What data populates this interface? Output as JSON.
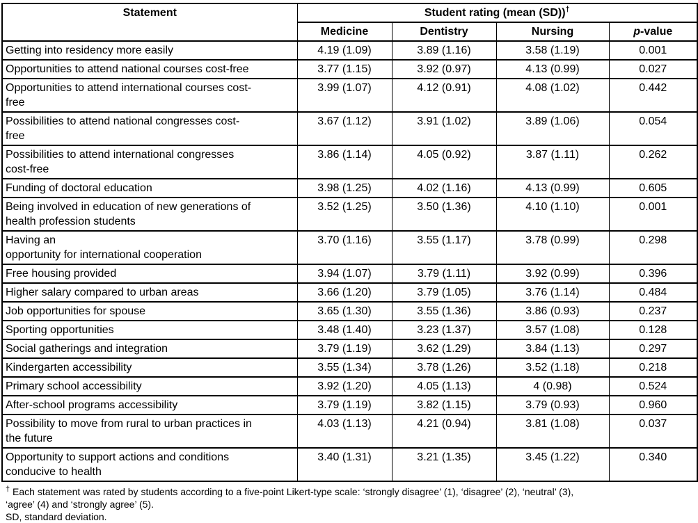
{
  "table": {
    "statement_header": "Statement",
    "group_header": "Student rating (mean (SD))",
    "group_header_sup": "†",
    "sub_headers": [
      "Medicine",
      "Dentistry",
      "Nursing"
    ],
    "p_header_italic": "p",
    "p_header_rest": "-value",
    "rows": [
      {
        "statement": "Getting into residency more easily",
        "medicine": "4.19 (1.09)",
        "dentistry": "3.89 (1.16)",
        "nursing": "3.58 (1.19)",
        "p": "0.001"
      },
      {
        "statement": "Opportunities to attend national courses cost-free",
        "medicine": "3.77 (1.15)",
        "dentistry": "3.92 (0.97)",
        "nursing": "4.13 (0.99)",
        "p": "0.027"
      },
      {
        "statement": "Opportunities to attend international courses cost-\nfree",
        "medicine": "3.99 (1.07)",
        "dentistry": "4.12 (0.91)",
        "nursing": "4.08 (1.02)",
        "p": "0.442"
      },
      {
        "statement": "Possibilities to attend national congresses cost-\nfree",
        "medicine": "3.67 (1.12)",
        "dentistry": "3.91 (1.02)",
        "nursing": "3.89 (1.06)",
        "p": "0.054"
      },
      {
        "statement": "Possibilities to attend international congresses\ncost-free",
        "medicine": "3.86 (1.14)",
        "dentistry": "4.05 (0.92)",
        "nursing": "3.87 (1.11)",
        "p": "0.262"
      },
      {
        "statement": "Funding of doctoral education",
        "medicine": "3.98 (1.25)",
        "dentistry": "4.02 (1.16)",
        "nursing": "4.13 (0.99)",
        "p": "0.605"
      },
      {
        "statement": "Being involved in education of new generations of\nhealth profession students",
        "medicine": "3.52 (1.25)",
        "dentistry": "3.50 (1.36)",
        "nursing": "4.10 (1.10)",
        "p": "0.001"
      },
      {
        "statement": "Having an\nopportunity for international cooperation",
        "medicine": "3.70 (1.16)",
        "dentistry": "3.55 (1.17)",
        "nursing": "3.78 (0.99)",
        "p": "0.298"
      },
      {
        "statement": "Free housing provided",
        "medicine": "3.94 (1.07)",
        "dentistry": "3.79 (1.11)",
        "nursing": "3.92 (0.99)",
        "p": "0.396"
      },
      {
        "statement": "Higher salary compared to urban areas",
        "medicine": "3.66 (1.20)",
        "dentistry": "3.79 (1.05)",
        "nursing": "3.76 (1.14)",
        "p": "0.484"
      },
      {
        "statement": "Job opportunities for spouse",
        "medicine": "3.65 (1.30)",
        "dentistry": "3.55 (1.36)",
        "nursing": "3.86 (0.93)",
        "p": "0.237"
      },
      {
        "statement": "Sporting opportunities",
        "medicine": "3.48 (1.40)",
        "dentistry": "3.23 (1.37)",
        "nursing": "3.57 (1.08)",
        "p": "0.128"
      },
      {
        "statement": "Social gatherings and integration",
        "medicine": "3.79 (1.19)",
        "dentistry": "3.62 (1.29)",
        "nursing": "3.84 (1.13)",
        "p": "0.297"
      },
      {
        "statement": "Kindergarten accessibility",
        "medicine": "3.55 (1.34)",
        "dentistry": "3.78 (1.26)",
        "nursing": "3.52 (1.18)",
        "p": "0.218"
      },
      {
        "statement": "Primary school accessibility",
        "medicine": "3.92 (1.20)",
        "dentistry": "4.05 (1.13)",
        "nursing": "4 (0.98)",
        "p": "0.524"
      },
      {
        "statement": "After-school programs accessibility",
        "medicine": "3.79 (1.19)",
        "dentistry": "3.82 (1.15)",
        "nursing": "3.79 (0.93)",
        "p": "0.960"
      },
      {
        "statement": "Possibility to move from rural to urban practices in\nthe future",
        "medicine": "4.03 (1.13)",
        "dentistry": "4.21 (0.94)",
        "nursing": "3.81 (1.08)",
        "p": "0.037"
      },
      {
        "statement": "Opportunity to support actions and conditions\nconducive to health",
        "medicine": "3.40 (1.31)",
        "dentistry": "3.21 (1.35)",
        "nursing": "3.45 (1.22)",
        "p": "0.340"
      }
    ]
  },
  "footnotes": {
    "dagger": "†",
    "scale_note": "Each statement was rated by students according to a five-point Likert-type scale: ‘strongly disagree’ (1), ‘disagree’ (2), ‘neutral’ (3),\n‘agree’ (4) and ‘strongly agree’ (5).",
    "sd_note": "SD, standard deviation."
  }
}
